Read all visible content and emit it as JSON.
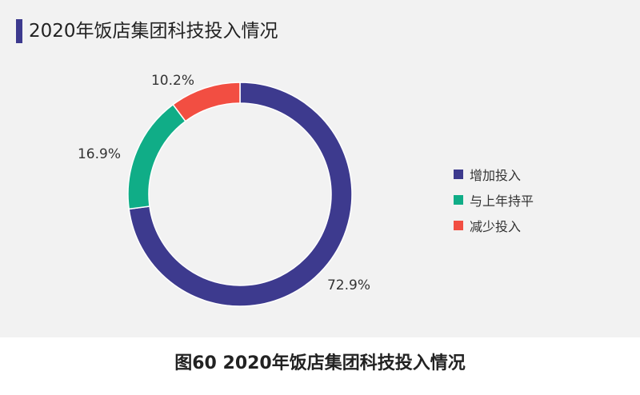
{
  "title": "2020年饭店集团科技投入情况",
  "caption": "图60  2020年饭店集团科技投入情况",
  "accent_color": "#3d3a8e",
  "chart_data": {
    "type": "pie",
    "donut": true,
    "title": "2020年饭店集团科技投入情况",
    "legend_position": "right",
    "categories": [
      "增加投入",
      "与上年持平",
      "减少投入"
    ],
    "values": [
      72.9,
      16.9,
      10.2
    ],
    "labels": [
      "72.9%",
      "16.9%",
      "10.2%"
    ],
    "colors": [
      "#3d3a8e",
      "#10ad87",
      "#f24e42"
    ]
  }
}
